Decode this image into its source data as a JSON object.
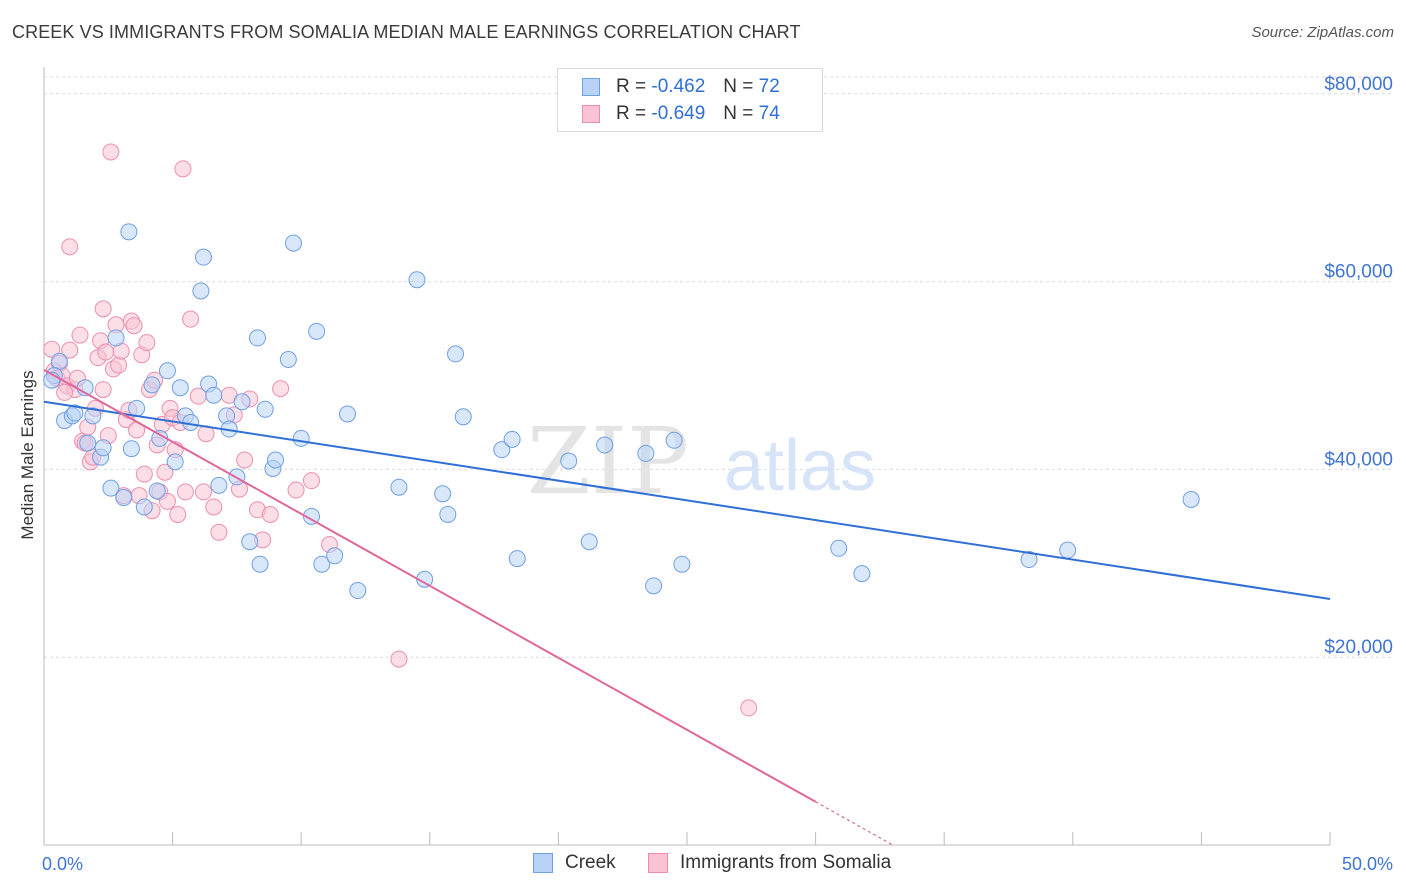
{
  "title": "CREEK VS IMMIGRANTS FROM SOMALIA MEDIAN MALE EARNINGS CORRELATION CHART",
  "source": "Source: ZipAtlas.com",
  "watermark": {
    "zip": "ZIP",
    "atlas": "atlas"
  },
  "legend": [
    {
      "r_label": "R =",
      "r_value": "-0.462",
      "n_label": "N =",
      "n_value": "72"
    },
    {
      "r_label": "R =",
      "r_value": "-0.649",
      "n_label": "N =",
      "n_value": "74"
    }
  ],
  "colors": {
    "creek_fill": "#b9d3f7",
    "creek_stroke": "#6f9fe3",
    "creek_line": "#2f6fd6",
    "somalia_fill": "#f9c3d4",
    "somalia_stroke": "#ec8fae",
    "somalia_line": "#e0679a",
    "axis_label": "#3f75d4",
    "grid": "#dcdcdc"
  },
  "chart_data": {
    "type": "scatter",
    "title": "CREEK VS IMMIGRANTS FROM SOMALIA MEDIAN MALE EARNINGS CORRELATION CHART",
    "xlabel": "",
    "ylabel": "Median Male Earnings",
    "xlim": [
      0,
      0.5
    ],
    "ylim": [
      0,
      82000
    ],
    "x_tick_labels": [
      "0.0%",
      "50.0%"
    ],
    "y_ticks": [
      20000,
      40000,
      60000,
      80000
    ],
    "y_tick_labels": [
      "$20,000",
      "$40,000",
      "$60,000",
      "$80,000"
    ],
    "grid": true,
    "legend_position": "top-center",
    "series": [
      {
        "name": "Creek",
        "r": -0.462,
        "n": 72,
        "trend": {
          "x0": 0.0,
          "y0": 47200,
          "x1": 0.5,
          "y1": 26200
        },
        "points": [
          [
            0.006,
            51500
          ],
          [
            0.004,
            50000
          ],
          [
            0.008,
            45200
          ],
          [
            0.011,
            45700
          ],
          [
            0.012,
            46000
          ],
          [
            0.016,
            48700
          ],
          [
            0.017,
            42800
          ],
          [
            0.019,
            45700
          ],
          [
            0.022,
            41300
          ],
          [
            0.023,
            42300
          ],
          [
            0.026,
            38000
          ],
          [
            0.028,
            54000
          ],
          [
            0.031,
            37000
          ],
          [
            0.033,
            65300
          ],
          [
            0.034,
            42200
          ],
          [
            0.036,
            46500
          ],
          [
            0.039,
            36000
          ],
          [
            0.042,
            49000
          ],
          [
            0.044,
            37700
          ],
          [
            0.045,
            43300
          ],
          [
            0.048,
            50500
          ],
          [
            0.051,
            40800
          ],
          [
            0.053,
            48700
          ],
          [
            0.055,
            45700
          ],
          [
            0.057,
            45000
          ],
          [
            0.061,
            59000
          ],
          [
            0.062,
            62600
          ],
          [
            0.064,
            49100
          ],
          [
            0.066,
            47900
          ],
          [
            0.068,
            38300
          ],
          [
            0.071,
            45700
          ],
          [
            0.072,
            44300
          ],
          [
            0.075,
            39200
          ],
          [
            0.077,
            47200
          ],
          [
            0.08,
            32300
          ],
          [
            0.083,
            54000
          ],
          [
            0.084,
            29900
          ],
          [
            0.086,
            46400
          ],
          [
            0.089,
            40100
          ],
          [
            0.09,
            41000
          ],
          [
            0.095,
            51700
          ],
          [
            0.097,
            64100
          ],
          [
            0.1,
            43300
          ],
          [
            0.104,
            35000
          ],
          [
            0.106,
            54700
          ],
          [
            0.108,
            29900
          ],
          [
            0.113,
            30800
          ],
          [
            0.118,
            45900
          ],
          [
            0.122,
            27100
          ],
          [
            0.138,
            38100
          ],
          [
            0.145,
            60200
          ],
          [
            0.148,
            28300
          ],
          [
            0.155,
            37400
          ],
          [
            0.157,
            35200
          ],
          [
            0.16,
            52300
          ],
          [
            0.163,
            45600
          ],
          [
            0.178,
            42100
          ],
          [
            0.182,
            43200
          ],
          [
            0.184,
            30500
          ],
          [
            0.204,
            40900
          ],
          [
            0.212,
            32300
          ],
          [
            0.218,
            42600
          ],
          [
            0.234,
            41700
          ],
          [
            0.237,
            27600
          ],
          [
            0.245,
            43100
          ],
          [
            0.248,
            29900
          ],
          [
            0.309,
            31600
          ],
          [
            0.318,
            28900
          ],
          [
            0.383,
            30400
          ],
          [
            0.398,
            31400
          ],
          [
            0.446,
            36800
          ],
          [
            0.003,
            49500
          ]
        ]
      },
      {
        "name": "Immigrants from Somalia",
        "r": -0.649,
        "n": 74,
        "trend": {
          "x0": 0.0,
          "y0": 50600,
          "x1": 0.3,
          "y1": 4600
        },
        "trend_dashed": {
          "x0": 0.3,
          "y0": 4600,
          "x1": 0.33,
          "y1": 0
        },
        "points": [
          [
            0.003,
            52800
          ],
          [
            0.004,
            50500
          ],
          [
            0.005,
            49700
          ],
          [
            0.006,
            51300
          ],
          [
            0.007,
            50000
          ],
          [
            0.009,
            48900
          ],
          [
            0.01,
            52700
          ],
          [
            0.01,
            63700
          ],
          [
            0.012,
            48500
          ],
          [
            0.013,
            49700
          ],
          [
            0.014,
            54300
          ],
          [
            0.015,
            43000
          ],
          [
            0.016,
            42800
          ],
          [
            0.017,
            44500
          ],
          [
            0.018,
            40800
          ],
          [
            0.019,
            41300
          ],
          [
            0.02,
            46500
          ],
          [
            0.021,
            51900
          ],
          [
            0.022,
            53700
          ],
          [
            0.023,
            57100
          ],
          [
            0.023,
            48500
          ],
          [
            0.024,
            52500
          ],
          [
            0.025,
            43600
          ],
          [
            0.026,
            73800
          ],
          [
            0.027,
            50700
          ],
          [
            0.028,
            55400
          ],
          [
            0.029,
            51100
          ],
          [
            0.03,
            52600
          ],
          [
            0.031,
            37200
          ],
          [
            0.032,
            45300
          ],
          [
            0.033,
            46300
          ],
          [
            0.034,
            55800
          ],
          [
            0.035,
            55300
          ],
          [
            0.036,
            44200
          ],
          [
            0.037,
            37200
          ],
          [
            0.038,
            52200
          ],
          [
            0.039,
            39500
          ],
          [
            0.04,
            53500
          ],
          [
            0.041,
            48500
          ],
          [
            0.042,
            35600
          ],
          [
            0.043,
            49500
          ],
          [
            0.044,
            42600
          ],
          [
            0.045,
            37600
          ],
          [
            0.046,
            44800
          ],
          [
            0.047,
            39700
          ],
          [
            0.048,
            36600
          ],
          [
            0.049,
            46500
          ],
          [
            0.05,
            45500
          ],
          [
            0.051,
            42100
          ],
          [
            0.052,
            35200
          ],
          [
            0.053,
            45000
          ],
          [
            0.054,
            72000
          ],
          [
            0.055,
            37600
          ],
          [
            0.057,
            56000
          ],
          [
            0.06,
            47800
          ],
          [
            0.062,
            37600
          ],
          [
            0.063,
            43800
          ],
          [
            0.066,
            36000
          ],
          [
            0.068,
            33300
          ],
          [
            0.072,
            47900
          ],
          [
            0.074,
            45800
          ],
          [
            0.076,
            37900
          ],
          [
            0.078,
            41000
          ],
          [
            0.08,
            47500
          ],
          [
            0.083,
            35700
          ],
          [
            0.085,
            32500
          ],
          [
            0.088,
            35200
          ],
          [
            0.092,
            48600
          ],
          [
            0.098,
            37800
          ],
          [
            0.104,
            38800
          ],
          [
            0.111,
            32000
          ],
          [
            0.138,
            19800
          ],
          [
            0.274,
            14600
          ],
          [
            0.008,
            48200
          ]
        ]
      }
    ]
  }
}
